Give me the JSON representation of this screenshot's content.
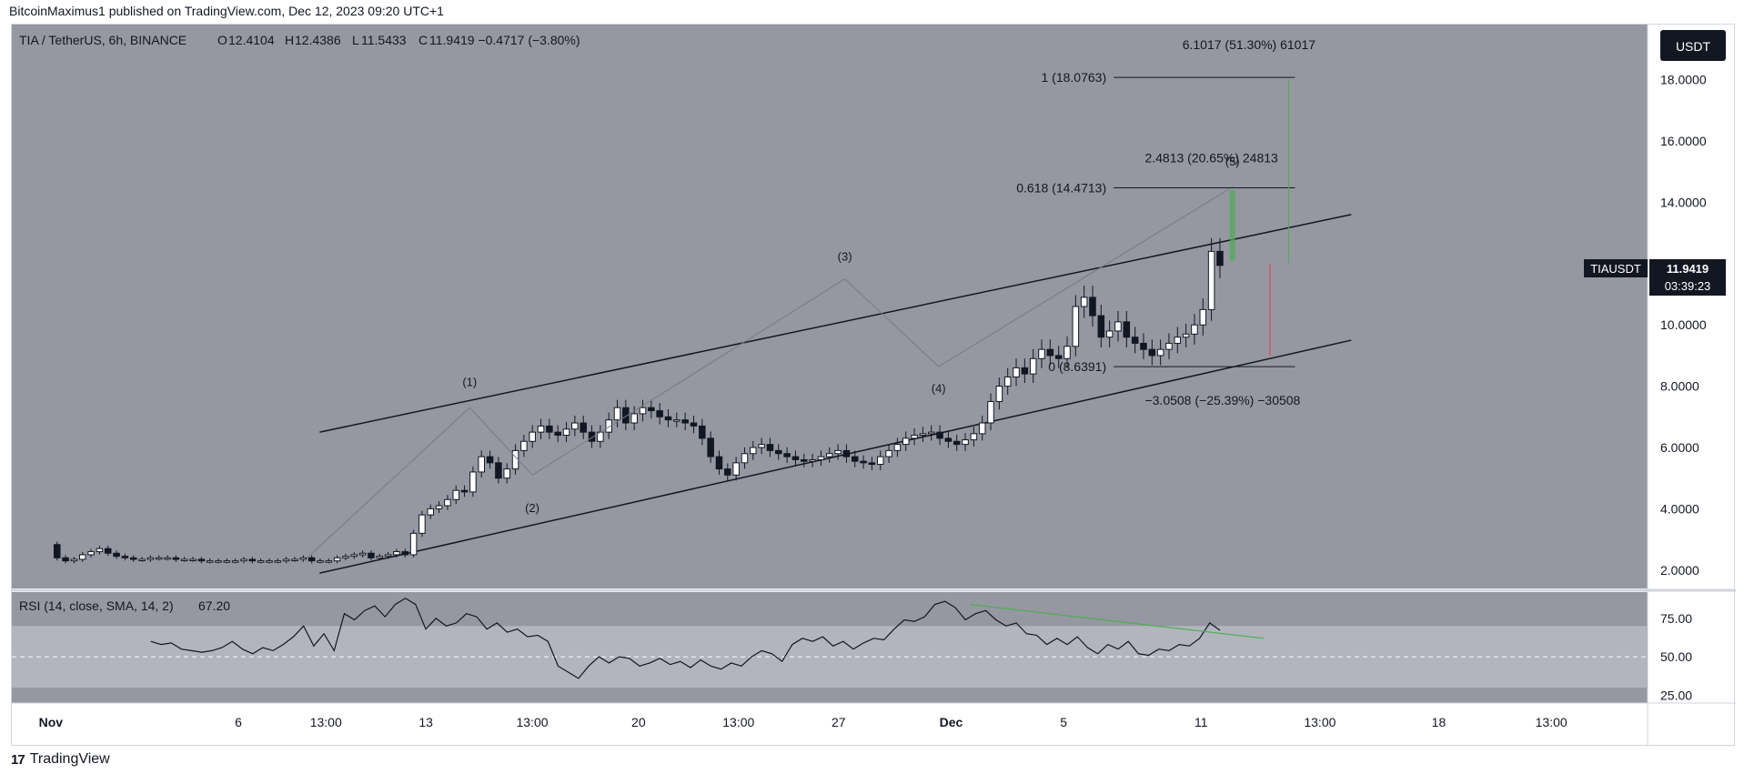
{
  "publish_line": "BitcoinMaximus1 published on TradingView.com, Dec 12, 2023 09:20 UTC+1",
  "footer": {
    "logo_text": "17",
    "brand": "TradingView"
  },
  "header": {
    "symbol": "TIA / TetherUS, 6h, BINANCE",
    "o_label": "O",
    "o_value": "12.4104",
    "h_label": "H",
    "h_value": "12.4386",
    "l_label": "L",
    "l_value": "11.5433",
    "c_label": "C",
    "c_value": "11.9419 −0.4717 (−3.80%)"
  },
  "currency_button": "USDT",
  "price_tag": {
    "symbol": "TIAUSDT",
    "price": "11.9419",
    "timer": "03:39:23"
  },
  "rsi_label": "RSI (14, close, SMA, 14, 2)",
  "rsi_value": "67.20",
  "colors": {
    "plot_bg": "#9598a1",
    "rsi_band": "#b2b5be",
    "candle_up": "#ffffff",
    "candle_down": "#131722",
    "wave_line": "#787b86",
    "green": "#4caf50",
    "red": "#f23645"
  },
  "chart_data": [
    {
      "type": "candlestick",
      "title": "TIA / TetherUS, 6h, BINANCE",
      "y_unit": "USDT",
      "y_ticks": [
        2,
        4,
        6,
        8,
        10,
        12,
        14,
        16,
        18
      ],
      "y_tick_labels": [
        "2.0000",
        "4.0000",
        "6.0000",
        "8.0000",
        "10.0000",
        "",
        "14.0000",
        "16.0000",
        "18.0000"
      ],
      "ylim": [
        1.4,
        19.8
      ],
      "x_tick_labels": [
        "Nov",
        "6",
        "13:00",
        "13",
        "13:00",
        "20",
        "13:00",
        "27",
        "Dec",
        "5",
        "11",
        "13:00",
        "18",
        "13:00"
      ],
      "x_tick_index": [
        1,
        31,
        45,
        61,
        78,
        95,
        111,
        127,
        145,
        163,
        185,
        204,
        223,
        241
      ],
      "x_index_range": [
        0,
        250
      ],
      "ohlc_summary": {
        "open": 12.4104,
        "high": 12.4386,
        "low": 11.5433,
        "close": 11.9419,
        "change": -0.4717,
        "change_pct": -3.8
      },
      "closes": [
        2.4,
        2.3,
        2.35,
        2.5,
        2.6,
        2.7,
        2.55,
        2.45,
        2.4,
        2.35,
        2.35,
        2.4,
        2.4,
        2.4,
        2.35,
        2.35,
        2.35,
        2.3,
        2.3,
        2.3,
        2.3,
        2.3,
        2.35,
        2.3,
        2.3,
        2.3,
        2.3,
        2.35,
        2.35,
        2.4,
        2.3,
        2.3,
        2.3,
        2.4,
        2.45,
        2.5,
        2.55,
        2.4,
        2.45,
        2.5,
        2.6,
        2.5,
        3.2,
        3.8,
        4.0,
        4.1,
        4.3,
        4.6,
        4.55,
        5.2,
        5.7,
        5.5,
        5.0,
        5.3,
        5.9,
        6.2,
        6.5,
        6.7,
        6.5,
        6.4,
        6.6,
        6.8,
        6.5,
        6.2,
        6.5,
        6.9,
        7.3,
        6.8,
        7.1,
        7.3,
        7.2,
        7.0,
        6.9,
        6.9,
        6.8,
        6.7,
        6.3,
        5.7,
        5.3,
        5.1,
        5.5,
        5.8,
        6.0,
        6.1,
        5.9,
        5.8,
        5.7,
        5.6,
        5.55,
        5.6,
        5.7,
        5.8,
        5.9,
        5.7,
        5.55,
        5.5,
        5.45,
        5.7,
        5.9,
        6.1,
        6.3,
        6.4,
        6.45,
        6.5,
        6.3,
        6.2,
        6.1,
        6.25,
        6.45,
        6.8,
        7.5,
        8.0,
        8.3,
        8.6,
        8.4,
        8.9,
        9.2,
        9.0,
        8.9,
        9.3,
        10.6,
        10.9,
        10.3,
        9.6,
        9.8,
        10.1,
        9.6,
        9.4,
        9.2,
        9.0,
        9.2,
        9.4,
        9.6,
        9.7,
        10.0,
        10.5,
        12.4,
        11.94
      ],
      "close_dates_note": "",
      "annotations": {
        "wave_labels": [
          "(1)",
          "(2)",
          "(3)",
          "(4)",
          "(5)"
        ],
        "fib_levels": [
          {
            "label": "1 (18.0763)",
            "price": 18.0763
          },
          {
            "label": "0.618 (14.4713)",
            "price": 14.4713
          },
          {
            "label": "0 (8.6391)",
            "price": 8.6391
          }
        ],
        "measures": [
          {
            "label": "6.1017 (51.30%) 61017",
            "color": "green"
          },
          {
            "label": "2.4813 (20.65%) 24813",
            "color": "green"
          },
          {
            "label": "−3.0508 (−25.39%) −30508",
            "color": "red"
          }
        ],
        "channel": "ascending parallel channel"
      }
    },
    {
      "type": "line",
      "title": "RSI (14, close, SMA, 14, 2)",
      "current": 67.2,
      "y_ticks": [
        25,
        50,
        75
      ],
      "y_tick_labels": [
        "25.00",
        "50.00",
        "75.00"
      ],
      "band": [
        30,
        70
      ],
      "midline": 50,
      "values": [
        60,
        58,
        59,
        55,
        54,
        53,
        54,
        56,
        60,
        55,
        52,
        56,
        54,
        58,
        63,
        70,
        57,
        65,
        54,
        78,
        74,
        80,
        83,
        76,
        84,
        88,
        84,
        68,
        75,
        70,
        72,
        78,
        76,
        68,
        72,
        66,
        68,
        63,
        64,
        60,
        44,
        40,
        36,
        44,
        50,
        46,
        50,
        49,
        44,
        46,
        49,
        45,
        47,
        43,
        48,
        44,
        42,
        46,
        44,
        50,
        54,
        52,
        47,
        58,
        62,
        60,
        63,
        57,
        60,
        55,
        59,
        62,
        61,
        68,
        74,
        73,
        76,
        84,
        86,
        82,
        74,
        78,
        80,
        74,
        70,
        72,
        65,
        64,
        58,
        62,
        58,
        63,
        56,
        52,
        58,
        55,
        60,
        52,
        51,
        55,
        54,
        58,
        57,
        62,
        72,
        67.2
      ],
      "divergence_line": "green declining trendline on RSI peaks"
    }
  ]
}
